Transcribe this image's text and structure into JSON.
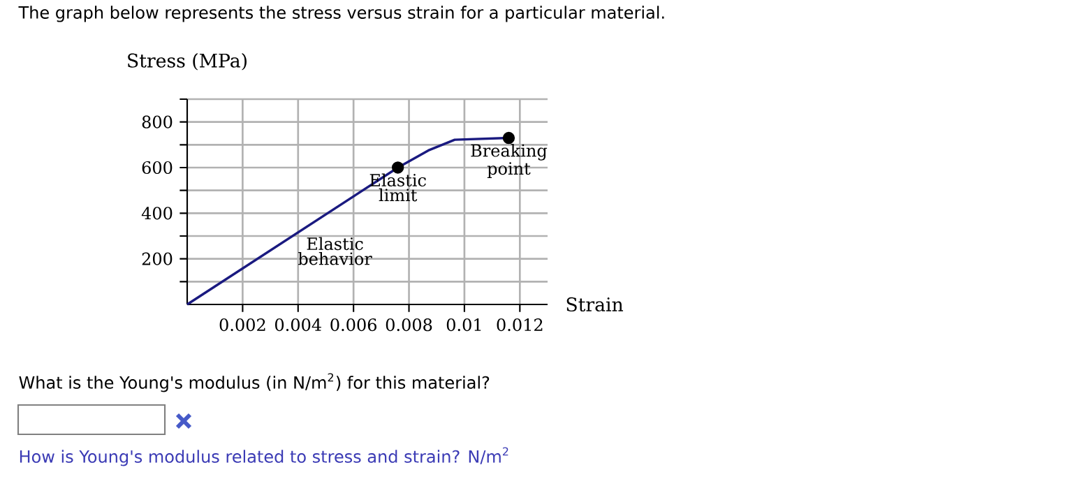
{
  "chart_data": {
    "type": "line",
    "title": "The graph below represents the stress versus strain for a particular material.",
    "xlabel": "Strain",
    "ylabel": "Stress (MPa)",
    "series": [
      {
        "color": "#1a1a80",
        "x": [
          0,
          0.0076,
          0.0087,
          0.00965,
          0.0116
        ],
        "values": [
          0,
          600,
          675,
          722,
          730
        ]
      },
      {
        "type": "scatter",
        "color": "#000000",
        "marker": "circle",
        "x": [
          0.0076,
          0.0116
        ],
        "values": [
          600,
          730
        ]
      }
    ],
    "xlim": [
      0,
      0.013
    ],
    "ylim": [
      0,
      900
    ],
    "xticks": [
      0.002,
      0.004,
      0.006,
      0.008,
      0.01,
      0.012
    ],
    "yticks": [
      {
        "value": 100,
        "label": null
      },
      200,
      {
        "value": 300,
        "label": null
      },
      400,
      {
        "value": 500,
        "label": null
      },
      600,
      {
        "value": 700,
        "label": null
      },
      800,
      {
        "value": 900,
        "label": null
      }
    ],
    "grid": true,
    "annotations": [
      "Elastic behavior",
      {
        "text": "Elastic limit",
        "x": 0.0076,
        "y": 600
      },
      {
        "text": "Breaking point",
        "x": 0.0116,
        "y": 730
      },
      "What is the Young's modulus (in N/m$^{2}$) for this material?",
      "How is Young's modulus related to stress and strain? N/m$^{2}$"
    ]
  }
}
